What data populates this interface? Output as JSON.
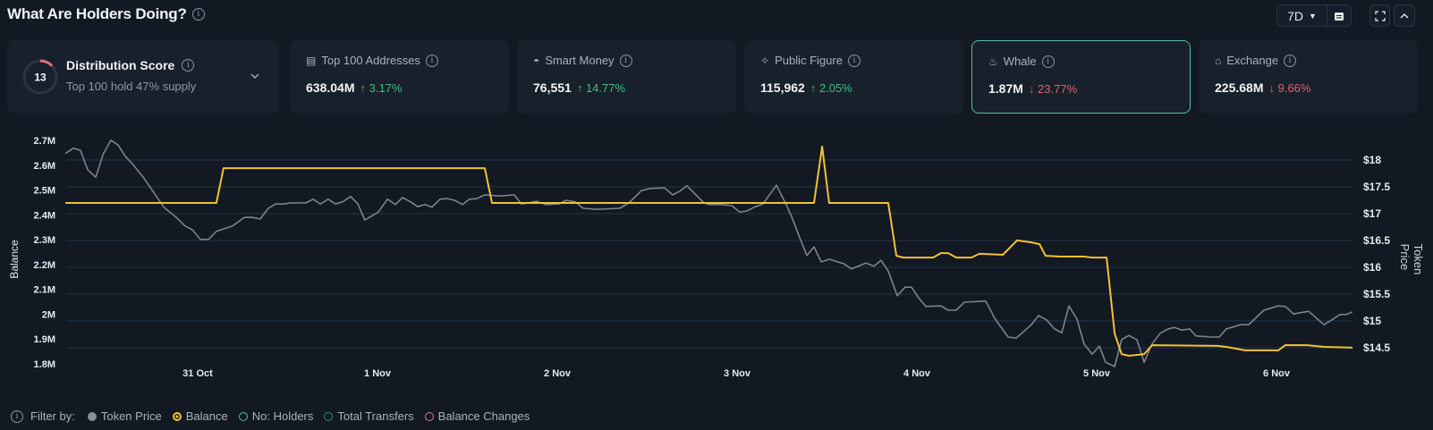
{
  "header": {
    "title": "What Are Holders Doing?",
    "period": "7D"
  },
  "distribution": {
    "score": "13",
    "title": "Distribution Score",
    "subtitle": "Top 100 hold 47% supply",
    "score_fraction": 0.13
  },
  "cards": [
    {
      "label": "Top 100 Addresses",
      "icon": "wallet-icon",
      "value": "638.04M",
      "arrow": "↑",
      "change": "3.17%",
      "dir": "up"
    },
    {
      "label": "Smart Money",
      "icon": "smart-money-icon",
      "value": "76,551",
      "arrow": "↑",
      "change": "14.77%",
      "dir": "up"
    },
    {
      "label": "Public Figure",
      "icon": "public-figure-icon",
      "value": "115,962",
      "arrow": "↑",
      "change": "2.05%",
      "dir": "up"
    },
    {
      "label": "Whale",
      "icon": "whale-icon",
      "value": "1.87M",
      "arrow": "↓",
      "change": "23.77%",
      "dir": "down",
      "selected": true
    },
    {
      "label": "Exchange",
      "icon": "bank-icon",
      "value": "225.68M",
      "arrow": "↓",
      "change": "9.66%",
      "dir": "down"
    }
  ],
  "filters": {
    "label": "Filter by:",
    "items": [
      {
        "label": "Token Price",
        "color": "#8a9099",
        "state": "filled"
      },
      {
        "label": "Balance",
        "color": "#f2c230",
        "state": "selected"
      },
      {
        "label": "No: Holders",
        "color": "#4fc3a6",
        "state": "off"
      },
      {
        "label": "Total Transfers",
        "color": "#2e8f7a",
        "state": "off"
      },
      {
        "label": "Balance Changes",
        "color": "#d77ab0",
        "state": "off"
      }
    ]
  },
  "chart_data": {
    "type": "line",
    "xlabel": "",
    "ylabel": "Balance",
    "y2label": "Token Price",
    "x_unit": "days since 31 Oct 00:00",
    "xlim": [
      -0.736,
      6.423
    ],
    "x_ticks": [
      {
        "v": 0,
        "label": "31 Oct"
      },
      {
        "v": 1,
        "label": "1 Nov"
      },
      {
        "v": 2,
        "label": "2 Nov"
      },
      {
        "v": 3,
        "label": "3 Nov"
      },
      {
        "v": 4,
        "label": "4 Nov"
      },
      {
        "v": 5,
        "label": "5 Nov"
      },
      {
        "v": 6,
        "label": "6 Nov"
      }
    ],
    "y_ticks": [
      "2.7M",
      "2.6M",
      "2.5M",
      "2.4M",
      "2.3M",
      "2.2M",
      "2.1M",
      "2M",
      "1.9M",
      "1.8M"
    ],
    "y_tick_values": [
      2.7,
      2.6,
      2.5,
      2.4,
      2.3,
      2.2,
      2.1,
      2.0,
      1.9,
      1.8
    ],
    "y2_ticks": [
      "$18",
      "$17.5",
      "$17",
      "$16.5",
      "$16",
      "$15.5",
      "$15",
      "$14.5"
    ],
    "y2_tick_values": [
      18,
      17.5,
      17,
      16.5,
      16,
      15.5,
      15,
      14.5
    ],
    "series": [
      {
        "name": "Token Price",
        "axis": "right",
        "color": "#7c838d",
        "points": [
          [
            -0.736,
            18.12
          ],
          [
            -0.692,
            18.22
          ],
          [
            -0.652,
            18.18
          ],
          [
            -0.612,
            17.82
          ],
          [
            -0.567,
            17.68
          ],
          [
            -0.527,
            18.1
          ],
          [
            -0.483,
            18.37
          ],
          [
            -0.443,
            18.28
          ],
          [
            -0.403,
            18.07
          ],
          [
            -0.363,
            17.93
          ],
          [
            -0.303,
            17.68
          ],
          [
            -0.239,
            17.37
          ],
          [
            -0.189,
            17.12
          ],
          [
            -0.119,
            16.93
          ],
          [
            -0.07,
            16.77
          ],
          [
            -0.03,
            16.7
          ],
          [
            0.015,
            16.52
          ],
          [
            0.06,
            16.52
          ],
          [
            0.104,
            16.67
          ],
          [
            0.194,
            16.77
          ],
          [
            0.259,
            16.93
          ],
          [
            0.303,
            16.93
          ],
          [
            0.348,
            16.9
          ],
          [
            0.393,
            17.1
          ],
          [
            0.433,
            17.18
          ],
          [
            0.478,
            17.18
          ],
          [
            0.517,
            17.2
          ],
          [
            0.602,
            17.2
          ],
          [
            0.642,
            17.27
          ],
          [
            0.682,
            17.18
          ],
          [
            0.726,
            17.27
          ],
          [
            0.766,
            17.18
          ],
          [
            0.806,
            17.22
          ],
          [
            0.851,
            17.32
          ],
          [
            0.891,
            17.18
          ],
          [
            0.93,
            16.88
          ],
          [
            1.005,
            17.03
          ],
          [
            1.055,
            17.27
          ],
          [
            1.1,
            17.17
          ],
          [
            1.139,
            17.3
          ],
          [
            1.179,
            17.23
          ],
          [
            1.224,
            17.13
          ],
          [
            1.264,
            17.17
          ],
          [
            1.303,
            17.12
          ],
          [
            1.348,
            17.27
          ],
          [
            1.388,
            17.28
          ],
          [
            1.428,
            17.25
          ],
          [
            1.473,
            17.17
          ],
          [
            1.512,
            17.27
          ],
          [
            1.552,
            17.28
          ],
          [
            1.597,
            17.35
          ],
          [
            1.677,
            17.33
          ],
          [
            1.761,
            17.35
          ],
          [
            1.801,
            17.18
          ],
          [
            1.886,
            17.23
          ],
          [
            1.935,
            17.17
          ],
          [
            2.01,
            17.18
          ],
          [
            2.05,
            17.25
          ],
          [
            2.1,
            17.22
          ],
          [
            2.144,
            17.1
          ],
          [
            2.219,
            17.08
          ],
          [
            2.348,
            17.1
          ],
          [
            2.398,
            17.2
          ],
          [
            2.468,
            17.43
          ],
          [
            2.517,
            17.47
          ],
          [
            2.597,
            17.48
          ],
          [
            2.642,
            17.35
          ],
          [
            2.682,
            17.42
          ],
          [
            2.721,
            17.52
          ],
          [
            2.816,
            17.2
          ],
          [
            2.846,
            17.17
          ],
          [
            2.915,
            17.17
          ],
          [
            2.97,
            17.15
          ],
          [
            3.015,
            17.03
          ],
          [
            3.055,
            17.05
          ],
          [
            3.095,
            17.12
          ],
          [
            3.144,
            17.18
          ],
          [
            3.219,
            17.53
          ],
          [
            3.264,
            17.23
          ],
          [
            3.303,
            16.95
          ],
          [
            3.343,
            16.6
          ],
          [
            3.388,
            16.22
          ],
          [
            3.428,
            16.38
          ],
          [
            3.468,
            16.1
          ],
          [
            3.512,
            16.15
          ],
          [
            3.562,
            16.1
          ],
          [
            3.592,
            16.07
          ],
          [
            3.637,
            15.97
          ],
          [
            3.716,
            16.08
          ],
          [
            3.761,
            16.02
          ],
          [
            3.801,
            16.13
          ],
          [
            3.841,
            15.93
          ],
          [
            3.891,
            15.47
          ],
          [
            3.935,
            15.63
          ],
          [
            3.97,
            15.63
          ],
          [
            4.01,
            15.43
          ],
          [
            4.05,
            15.27
          ],
          [
            4.134,
            15.28
          ],
          [
            4.174,
            15.2
          ],
          [
            4.219,
            15.2
          ],
          [
            4.264,
            15.35
          ],
          [
            4.383,
            15.37
          ],
          [
            4.433,
            15.05
          ],
          [
            4.507,
            14.7
          ],
          [
            4.552,
            14.68
          ],
          [
            4.637,
            14.93
          ],
          [
            4.677,
            15.1
          ],
          [
            4.721,
            15.02
          ],
          [
            4.766,
            14.85
          ],
          [
            4.806,
            14.78
          ],
          [
            4.846,
            15.28
          ],
          [
            4.891,
            15.03
          ],
          [
            4.93,
            14.57
          ],
          [
            4.975,
            14.38
          ],
          [
            5.015,
            14.53
          ],
          [
            5.05,
            14.23
          ],
          [
            5.1,
            14.15
          ],
          [
            5.139,
            14.65
          ],
          [
            5.179,
            14.73
          ],
          [
            5.224,
            14.65
          ],
          [
            5.264,
            14.23
          ],
          [
            5.308,
            14.57
          ],
          [
            5.353,
            14.77
          ],
          [
            5.398,
            14.85
          ],
          [
            5.433,
            14.88
          ],
          [
            5.473,
            14.83
          ],
          [
            5.517,
            14.85
          ],
          [
            5.552,
            14.72
          ],
          [
            5.637,
            14.7
          ],
          [
            5.682,
            14.7
          ],
          [
            5.721,
            14.85
          ],
          [
            5.801,
            14.93
          ],
          [
            5.846,
            14.93
          ],
          [
            5.93,
            15.2
          ],
          [
            6.01,
            15.28
          ],
          [
            6.05,
            15.27
          ],
          [
            6.095,
            15.13
          ],
          [
            6.179,
            15.18
          ],
          [
            6.264,
            14.93
          ],
          [
            6.308,
            15.02
          ],
          [
            6.353,
            15.12
          ],
          [
            6.388,
            15.12
          ],
          [
            6.423,
            15.17
          ]
        ]
      },
      {
        "name": "Balance",
        "axis": "left",
        "color": "#f2c230",
        "points": [
          [
            -0.736,
            2.448
          ],
          [
            0.104,
            2.448
          ],
          [
            0.144,
            2.588
          ],
          [
            1.597,
            2.588
          ],
          [
            1.637,
            2.448
          ],
          [
            3.428,
            2.448
          ],
          [
            3.473,
            2.675
          ],
          [
            3.512,
            2.448
          ],
          [
            3.841,
            2.448
          ],
          [
            3.886,
            2.235
          ],
          [
            3.925,
            2.228
          ],
          [
            4.09,
            2.228
          ],
          [
            4.134,
            2.246
          ],
          [
            4.174,
            2.246
          ],
          [
            4.219,
            2.228
          ],
          [
            4.303,
            2.228
          ],
          [
            4.348,
            2.243
          ],
          [
            4.478,
            2.239
          ],
          [
            4.557,
            2.297
          ],
          [
            4.637,
            2.289
          ],
          [
            4.682,
            2.282
          ],
          [
            4.716,
            2.235
          ],
          [
            4.796,
            2.232
          ],
          [
            4.93,
            2.232
          ],
          [
            4.975,
            2.228
          ],
          [
            5.055,
            2.228
          ],
          [
            5.1,
            1.922
          ],
          [
            5.139,
            1.839
          ],
          [
            5.179,
            1.832
          ],
          [
            5.264,
            1.839
          ],
          [
            5.308,
            1.875
          ],
          [
            5.672,
            1.872
          ],
          [
            5.721,
            1.868
          ],
          [
            5.826,
            1.854
          ],
          [
            6.01,
            1.854
          ],
          [
            6.05,
            1.875
          ],
          [
            6.169,
            1.875
          ],
          [
            6.264,
            1.868
          ],
          [
            6.423,
            1.865
          ]
        ]
      }
    ]
  }
}
